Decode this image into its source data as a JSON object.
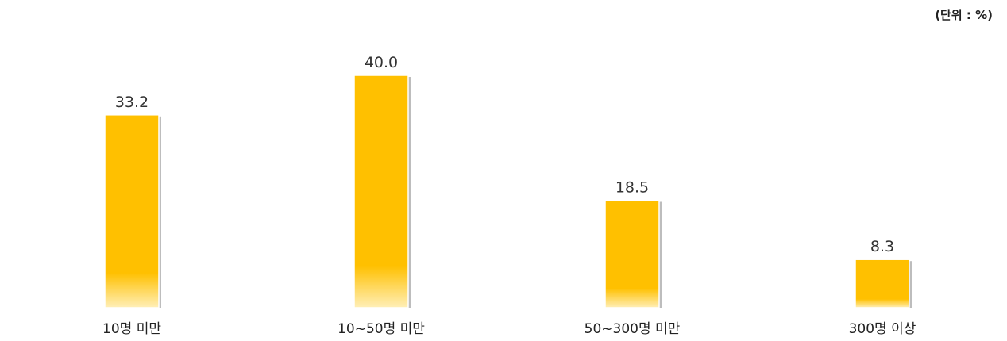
{
  "unit_label": "(단위 : %)",
  "colors": {
    "bar": "#FFC000",
    "bar_fade": "#FFEFB8",
    "axis": "#BFBFBF",
    "text": "#222222"
  },
  "chart_data": {
    "type": "bar",
    "categories": [
      "10명 미만",
      "10~50명 미만",
      "50~300명 미만",
      "300명 이상"
    ],
    "values": [
      33.2,
      40.0,
      18.5,
      8.3
    ],
    "value_labels": [
      "33.2",
      "40.0",
      "18.5",
      "8.3"
    ],
    "ylim": [
      0,
      40
    ],
    "grid": false,
    "legend": "none"
  }
}
